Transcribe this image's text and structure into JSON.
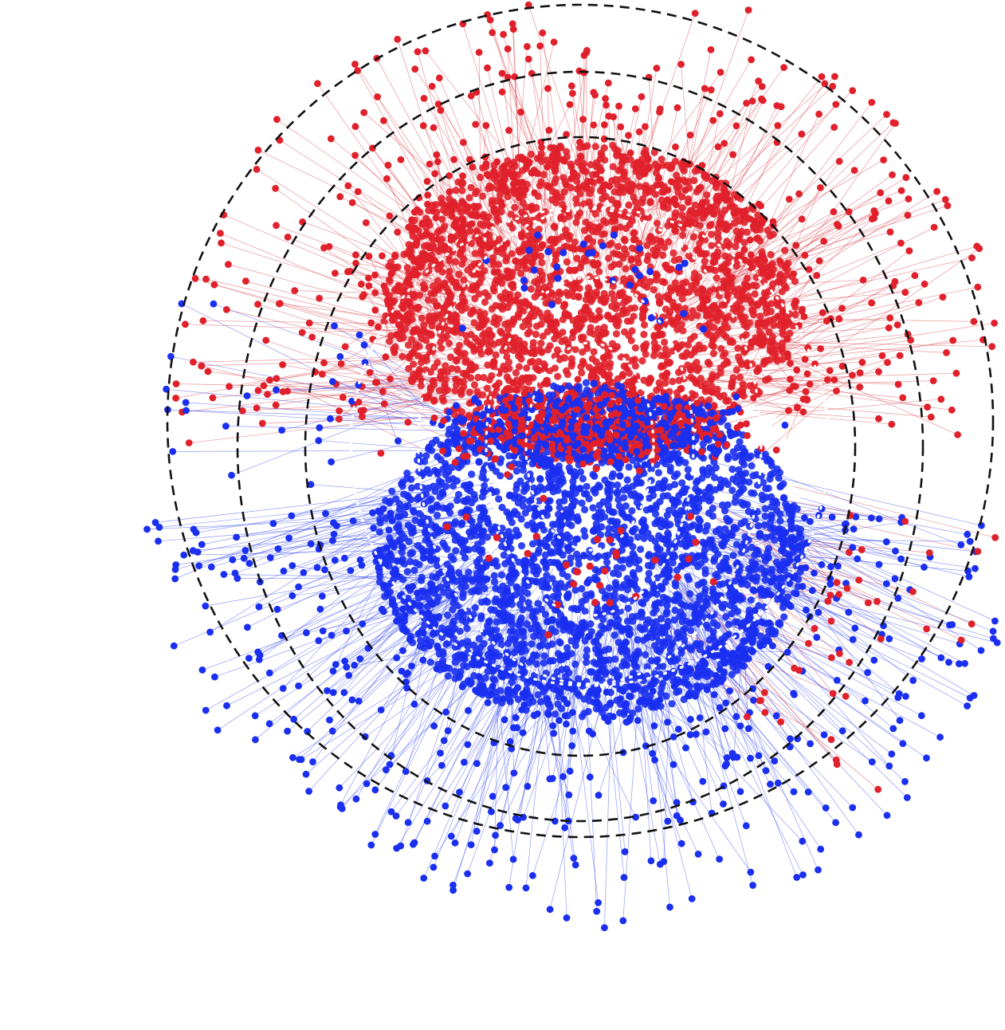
{
  "figure": {
    "kind": "network-layout",
    "background": "#ffffff",
    "groups": [
      {
        "color": "#e0202a",
        "edge_color": "#d9404a",
        "region": "upper"
      },
      {
        "color": "#1a2ff0",
        "edge_color": "#3a4cf0",
        "region": "lower"
      }
    ],
    "rings": {
      "dashed_color": "#111111",
      "dashed_count": 3,
      "dotted_color": "#ffffff",
      "dotted_count": 4
    }
  }
}
